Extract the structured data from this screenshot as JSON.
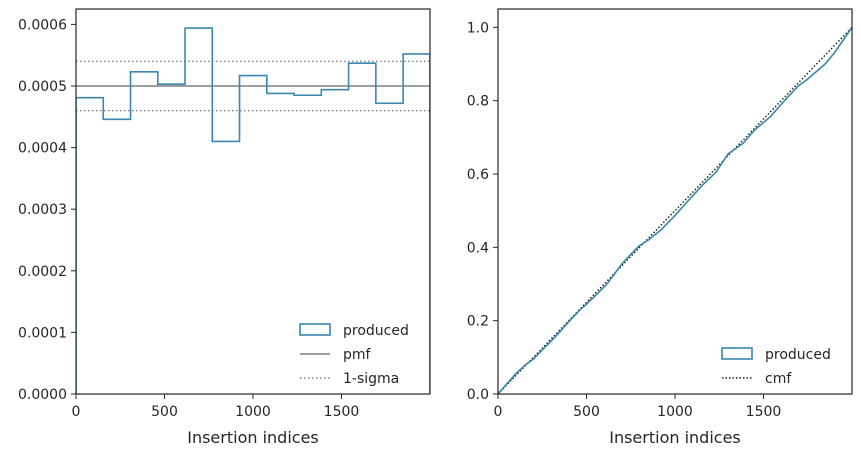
{
  "chart_data": [
    {
      "type": "histogram-step",
      "xlabel": "Insertion indices",
      "ylabel": "",
      "xlim": [
        0,
        2000
      ],
      "ylim": [
        0,
        0.000625
      ],
      "xticks": [
        0,
        500,
        1000,
        1500
      ],
      "xtick_labels": [
        "0",
        "500",
        "1000",
        "1500"
      ],
      "yticks": [
        0,
        0.0001,
        0.0002,
        0.0003,
        0.0004,
        0.0005,
        0.0006
      ],
      "ytick_labels": [
        "0.0000",
        "0.0001",
        "0.0002",
        "0.0003",
        "0.0004",
        "0.0005",
        "0.0006"
      ],
      "bin_edges": [
        0,
        154,
        308,
        462,
        616,
        770,
        924,
        1078,
        1232,
        1386,
        1540,
        1694,
        1848,
        2000
      ],
      "values": [
        0.000481,
        0.000446,
        0.000523,
        0.000503,
        0.000594,
        0.00041,
        0.000517,
        0.000488,
        0.000485,
        0.000494,
        0.000537,
        0.000472,
        0.000552
      ],
      "series_color": "#3a87b0",
      "reference_lines": [
        {
          "y": 0.0005,
          "style": "solid",
          "color": "#7f7f7f"
        },
        {
          "y": 0.00054,
          "style": "dotted",
          "color": "#7f7f7f"
        },
        {
          "y": 0.00046,
          "style": "dotted",
          "color": "#7f7f7f"
        }
      ],
      "legend_position": "lower-right",
      "legend": [
        "produced",
        "pmf",
        "1-sigma"
      ]
    },
    {
      "type": "line",
      "xlabel": "Insertion indices",
      "ylabel": "",
      "xlim": [
        0,
        2000
      ],
      "ylim": [
        0,
        1.05
      ],
      "xticks": [
        0,
        500,
        1000,
        1500
      ],
      "xtick_labels": [
        "0",
        "500",
        "1000",
        "1500"
      ],
      "yticks": [
        0,
        0.2,
        0.4,
        0.6,
        0.8,
        1.0
      ],
      "ytick_labels": [
        "0.0",
        "0.2",
        "0.4",
        "0.6",
        "0.8",
        "1.0"
      ],
      "series": [
        {
          "name": "produced",
          "color": "#3a87b0",
          "x": [
            0,
            50,
            100,
            154,
            200,
            250,
            308,
            350,
            400,
            462,
            500,
            550,
            616,
            650,
            700,
            770,
            800,
            850,
            924,
            1000,
            1078,
            1150,
            1232,
            1300,
            1386,
            1450,
            1540,
            1600,
            1694,
            1750,
            1848,
            1900,
            2000
          ],
          "y": [
            0,
            0.028,
            0.055,
            0.079,
            0.095,
            0.12,
            0.148,
            0.17,
            0.197,
            0.229,
            0.245,
            0.268,
            0.3,
            0.322,
            0.355,
            0.391,
            0.405,
            0.42,
            0.449,
            0.487,
            0.529,
            0.567,
            0.605,
            0.655,
            0.684,
            0.72,
            0.757,
            0.79,
            0.839,
            0.859,
            0.9,
            0.93,
            1.0
          ]
        },
        {
          "name": "cmf",
          "color": "#1a1a1a",
          "x": [
            0,
            2000
          ],
          "y": [
            0,
            1.0
          ]
        }
      ],
      "legend_position": "lower-right",
      "legend": [
        "produced",
        "cmf"
      ]
    }
  ]
}
